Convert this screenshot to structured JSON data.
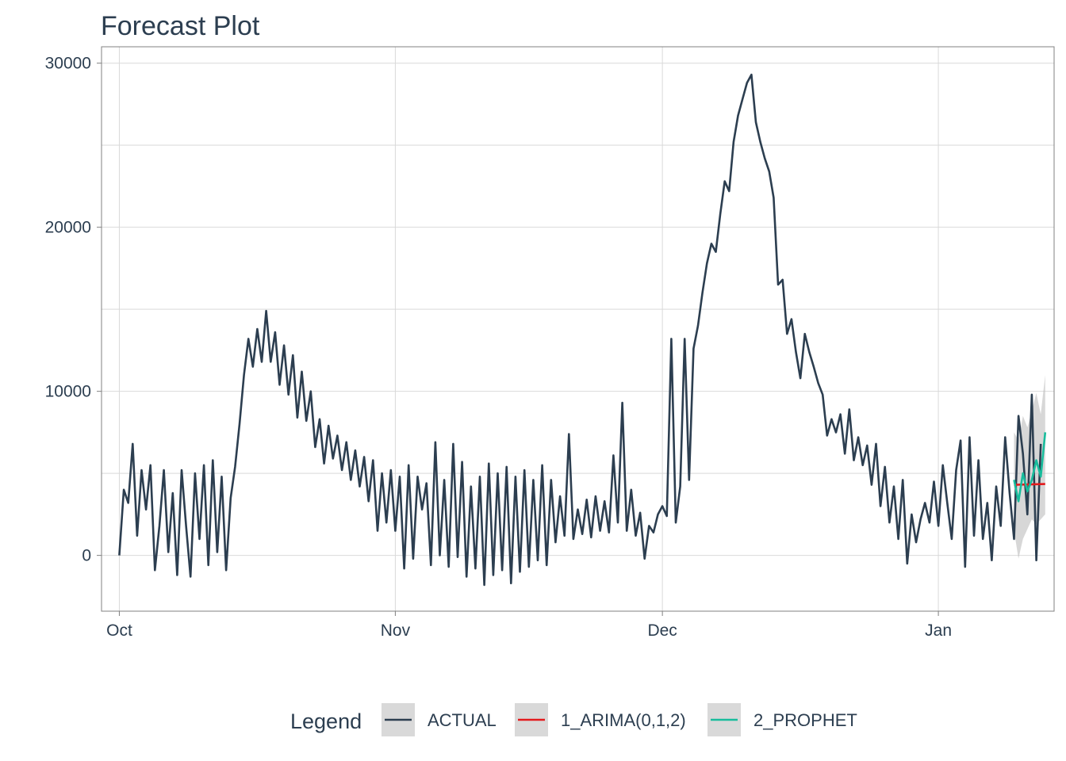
{
  "chart_data": {
    "type": "line",
    "title": "Forecast Plot",
    "xlabel": "",
    "ylabel": "",
    "x_axis": {
      "type": "date",
      "range": [
        "2020-09-29",
        "2021-01-14"
      ],
      "ticks": [
        {
          "date": "2020-10-01",
          "label": "Oct"
        },
        {
          "date": "2020-11-01",
          "label": "Nov"
        },
        {
          "date": "2020-12-01",
          "label": "Dec"
        },
        {
          "date": "2021-01-01",
          "label": "Jan"
        }
      ]
    },
    "y_axis": {
      "range": [
        -3400,
        31000
      ],
      "ticks": [
        0,
        10000,
        20000,
        30000
      ]
    },
    "grid": true,
    "legend": {
      "title": "Legend",
      "position": "bottom",
      "entries": [
        {
          "label": "ACTUAL",
          "color": "#2c3e50"
        },
        {
          "label": "1_ARIMA(0,1,2)",
          "color": "#e31a1c"
        },
        {
          "label": "2_PROPHET",
          "color": "#18bc9c"
        }
      ]
    },
    "series": [
      {
        "name": "ACTUAL",
        "color": "#2c3e50",
        "points": [
          [
            "2020-10-01",
            0
          ],
          [
            "2020-10-01T12:00",
            4000
          ],
          [
            "2020-10-02",
            3200
          ],
          [
            "2020-10-02T12:00",
            6800
          ],
          [
            "2020-10-03",
            1200
          ],
          [
            "2020-10-03T12:00",
            5200
          ],
          [
            "2020-10-04",
            2800
          ],
          [
            "2020-10-04T12:00",
            5500
          ],
          [
            "2020-10-05",
            -900
          ],
          [
            "2020-10-05T12:00",
            1800
          ],
          [
            "2020-10-06",
            5200
          ],
          [
            "2020-10-06T12:00",
            200
          ],
          [
            "2020-10-07",
            3800
          ],
          [
            "2020-10-07T12:00",
            -1200
          ],
          [
            "2020-10-08",
            5200
          ],
          [
            "2020-10-08T12:00",
            1800
          ],
          [
            "2020-10-09",
            -1300
          ],
          [
            "2020-10-09T12:00",
            5000
          ],
          [
            "2020-10-10",
            1000
          ],
          [
            "2020-10-10T12:00",
            5500
          ],
          [
            "2020-10-11",
            -600
          ],
          [
            "2020-10-11T12:00",
            5800
          ],
          [
            "2020-10-12",
            200
          ],
          [
            "2020-10-12T12:00",
            4800
          ],
          [
            "2020-10-13",
            -900
          ],
          [
            "2020-10-13T12:00",
            3500
          ],
          [
            "2020-10-14",
            5400
          ],
          [
            "2020-10-14T12:00",
            8000
          ],
          [
            "2020-10-15",
            11000
          ],
          [
            "2020-10-15T12:00",
            13200
          ],
          [
            "2020-10-16",
            11500
          ],
          [
            "2020-10-16T12:00",
            13800
          ],
          [
            "2020-10-17",
            11800
          ],
          [
            "2020-10-17T12:00",
            14900
          ],
          [
            "2020-10-18",
            11800
          ],
          [
            "2020-10-18T12:00",
            13600
          ],
          [
            "2020-10-19",
            10400
          ],
          [
            "2020-10-19T12:00",
            12800
          ],
          [
            "2020-10-20",
            9800
          ],
          [
            "2020-10-20T12:00",
            12200
          ],
          [
            "2020-10-21",
            8400
          ],
          [
            "2020-10-21T12:00",
            11200
          ],
          [
            "2020-10-22",
            8200
          ],
          [
            "2020-10-22T12:00",
            10000
          ],
          [
            "2020-10-23",
            6600
          ],
          [
            "2020-10-23T12:00",
            8300
          ],
          [
            "2020-10-24",
            5600
          ],
          [
            "2020-10-24T12:00",
            7900
          ],
          [
            "2020-10-25",
            5900
          ],
          [
            "2020-10-25T12:00",
            7300
          ],
          [
            "2020-10-26",
            5200
          ],
          [
            "2020-10-26T12:00",
            6900
          ],
          [
            "2020-10-27",
            4600
          ],
          [
            "2020-10-27T12:00",
            6400
          ],
          [
            "2020-10-28",
            4200
          ],
          [
            "2020-10-28T12:00",
            6000
          ],
          [
            "2020-10-29",
            3300
          ],
          [
            "2020-10-29T12:00",
            5800
          ],
          [
            "2020-10-30",
            1500
          ],
          [
            "2020-10-30T12:00",
            5000
          ],
          [
            "2020-10-31",
            2000
          ],
          [
            "2020-10-31T12:00",
            5200
          ],
          [
            "2020-11-01",
            1500
          ],
          [
            "2020-11-01T12:00",
            4800
          ],
          [
            "2020-11-02",
            -800
          ],
          [
            "2020-11-02T12:00",
            5500
          ],
          [
            "2020-11-03",
            -200
          ],
          [
            "2020-11-03T12:00",
            4800
          ],
          [
            "2020-11-04",
            2800
          ],
          [
            "2020-11-04T12:00",
            4400
          ],
          [
            "2020-11-05",
            -600
          ],
          [
            "2020-11-05T12:00",
            6900
          ],
          [
            "2020-11-06",
            0
          ],
          [
            "2020-11-06T12:00",
            4600
          ],
          [
            "2020-11-07",
            -700
          ],
          [
            "2020-11-07T12:00",
            6800
          ],
          [
            "2020-11-08",
            -100
          ],
          [
            "2020-11-08T12:00",
            5700
          ],
          [
            "2020-11-09",
            -1300
          ],
          [
            "2020-11-09T12:00",
            4200
          ],
          [
            "2020-11-10",
            -800
          ],
          [
            "2020-11-10T12:00",
            4800
          ],
          [
            "2020-11-11",
            -1800
          ],
          [
            "2020-11-11T12:00",
            5600
          ],
          [
            "2020-11-12",
            -1200
          ],
          [
            "2020-11-12T12:00",
            5000
          ],
          [
            "2020-11-13",
            -900
          ],
          [
            "2020-11-13T12:00",
            5400
          ],
          [
            "2020-11-14",
            -1700
          ],
          [
            "2020-11-14T12:00",
            4800
          ],
          [
            "2020-11-15",
            -1000
          ],
          [
            "2020-11-15T12:00",
            5200
          ],
          [
            "2020-11-16",
            -700
          ],
          [
            "2020-11-16T12:00",
            4600
          ],
          [
            "2020-11-17",
            -300
          ],
          [
            "2020-11-17T12:00",
            5500
          ],
          [
            "2020-11-18",
            -600
          ],
          [
            "2020-11-18T12:00",
            4600
          ],
          [
            "2020-11-19",
            800
          ],
          [
            "2020-11-19T12:00",
            3600
          ],
          [
            "2020-11-20",
            1200
          ],
          [
            "2020-11-20T12:00",
            7400
          ],
          [
            "2020-11-21",
            1000
          ],
          [
            "2020-11-21T12:00",
            2800
          ],
          [
            "2020-11-22",
            1300
          ],
          [
            "2020-11-22T12:00",
            3400
          ],
          [
            "2020-11-23",
            1100
          ],
          [
            "2020-11-23T12:00",
            3600
          ],
          [
            "2020-11-24",
            1500
          ],
          [
            "2020-11-24T12:00",
            3300
          ],
          [
            "2020-11-25",
            1400
          ],
          [
            "2020-11-25T12:00",
            6100
          ],
          [
            "2020-11-26",
            2000
          ],
          [
            "2020-11-26T12:00",
            9300
          ],
          [
            "2020-11-27",
            1500
          ],
          [
            "2020-11-27T12:00",
            4000
          ],
          [
            "2020-11-28",
            1200
          ],
          [
            "2020-11-28T12:00",
            2600
          ],
          [
            "2020-11-29",
            -200
          ],
          [
            "2020-11-29T12:00",
            1800
          ],
          [
            "2020-11-30",
            1400
          ],
          [
            "2020-11-30T12:00",
            2500
          ]
        ],
        "points_part2": [
          [
            "2020-12-01",
            3000
          ],
          [
            "2020-12-01T12:00",
            2400
          ],
          [
            "2020-12-02",
            13200
          ],
          [
            "2020-12-02T12:00",
            2000
          ],
          [
            "2020-12-03",
            4200
          ],
          [
            "2020-12-03T12:00",
            13200
          ],
          [
            "2020-12-04",
            4600
          ],
          [
            "2020-12-04T12:00",
            12600
          ],
          [
            "2020-12-05",
            14000
          ],
          [
            "2020-12-05T12:00",
            16000
          ],
          [
            "2020-12-06",
            17800
          ],
          [
            "2020-12-06T12:00",
            19000
          ],
          [
            "2020-12-07",
            18500
          ],
          [
            "2020-12-07T12:00",
            20800
          ],
          [
            "2020-12-08",
            22800
          ],
          [
            "2020-12-08T12:00",
            22200
          ],
          [
            "2020-12-09",
            25200
          ],
          [
            "2020-12-09T12:00",
            26800
          ],
          [
            "2020-12-10",
            27800
          ],
          [
            "2020-12-10T12:00",
            28800
          ],
          [
            "2020-12-11",
            29300
          ],
          [
            "2020-12-11T12:00",
            26400
          ],
          [
            "2020-12-12",
            25200
          ],
          [
            "2020-12-12T12:00",
            24200
          ],
          [
            "2020-12-13",
            23400
          ],
          [
            "2020-12-13T12:00",
            21800
          ],
          [
            "2020-12-14",
            16500
          ],
          [
            "2020-12-14T12:00",
            16800
          ],
          [
            "2020-12-15",
            13500
          ],
          [
            "2020-12-15T12:00",
            14400
          ],
          [
            "2020-12-16",
            12400
          ],
          [
            "2020-12-16T12:00",
            10800
          ],
          [
            "2020-12-17",
            13500
          ],
          [
            "2020-12-17T12:00",
            12400
          ],
          [
            "2020-12-18",
            11500
          ],
          [
            "2020-12-18T12:00",
            10500
          ],
          [
            "2020-12-19",
            9800
          ],
          [
            "2020-12-19T12:00",
            7300
          ],
          [
            "2020-12-20",
            8300
          ],
          [
            "2020-12-20T12:00",
            7500
          ],
          [
            "2020-12-21",
            8600
          ],
          [
            "2020-12-21T12:00",
            6200
          ],
          [
            "2020-12-22",
            8900
          ],
          [
            "2020-12-22T12:00",
            5800
          ],
          [
            "2020-12-23",
            7200
          ],
          [
            "2020-12-23T12:00",
            5500
          ],
          [
            "2020-12-24",
            6700
          ],
          [
            "2020-12-24T12:00",
            4300
          ],
          [
            "2020-12-25",
            6800
          ],
          [
            "2020-12-25T12:00",
            3000
          ],
          [
            "2020-12-26",
            5400
          ],
          [
            "2020-12-26T12:00",
            2000
          ],
          [
            "2020-12-27",
            4200
          ],
          [
            "2020-12-27T12:00",
            1000
          ],
          [
            "2020-12-28",
            4600
          ],
          [
            "2020-12-28T12:00",
            -500
          ],
          [
            "2020-12-29",
            2500
          ],
          [
            "2020-12-29T12:00",
            800
          ],
          [
            "2020-12-30",
            2200
          ],
          [
            "2020-12-30T12:00",
            3200
          ],
          [
            "2020-12-31",
            2000
          ],
          [
            "2020-12-31T12:00",
            4500
          ]
        ],
        "points_part3": [
          [
            "2021-01-01",
            1800
          ],
          [
            "2021-01-01T12:00",
            5500
          ],
          [
            "2021-01-02",
            3200
          ],
          [
            "2021-01-02T12:00",
            1000
          ],
          [
            "2021-01-03",
            5200
          ],
          [
            "2021-01-03T12:00",
            7000
          ],
          [
            "2021-01-04",
            -700
          ],
          [
            "2021-01-04T12:00",
            7200
          ],
          [
            "2021-01-05",
            1200
          ],
          [
            "2021-01-05T12:00",
            5800
          ],
          [
            "2021-01-06",
            1000
          ],
          [
            "2021-01-06T12:00",
            3200
          ],
          [
            "2021-01-07",
            -300
          ],
          [
            "2021-01-07T12:00",
            4200
          ],
          [
            "2021-01-08",
            1800
          ],
          [
            "2021-01-08T12:00",
            7200
          ],
          [
            "2021-01-09",
            3800
          ],
          [
            "2021-01-09T12:00",
            1000
          ],
          [
            "2021-01-10",
            8500
          ],
          [
            "2021-01-10T12:00",
            6200
          ],
          [
            "2021-01-11",
            2500
          ],
          [
            "2021-01-11T12:00",
            9800
          ],
          [
            "2021-01-12",
            -300
          ],
          [
            "2021-01-12T12:00",
            6800
          ]
        ]
      },
      {
        "name": "1_ARIMA(0,1,2)",
        "color": "#e31a1c",
        "points": [
          [
            "2021-01-09T12:00",
            4300
          ],
          [
            "2021-01-13",
            4350
          ]
        ]
      },
      {
        "name": "2_PROPHET",
        "color": "#18bc9c",
        "points": [
          [
            "2021-01-09T12:00",
            4600
          ],
          [
            "2021-01-10",
            3300
          ],
          [
            "2021-01-10T12:00",
            5000
          ],
          [
            "2021-01-11",
            3900
          ],
          [
            "2021-01-11T12:00",
            4600
          ],
          [
            "2021-01-12",
            5800
          ],
          [
            "2021-01-12T12:00",
            4800
          ],
          [
            "2021-01-13",
            7500
          ]
        ],
        "band": [
          [
            "2021-01-09T12:00",
            1500,
            7500
          ],
          [
            "2021-01-10",
            -200,
            7000
          ],
          [
            "2021-01-10T12:00",
            1000,
            8500
          ],
          [
            "2021-01-11",
            1600,
            7800
          ],
          [
            "2021-01-11T12:00",
            2200,
            8800
          ],
          [
            "2021-01-12",
            1900,
            9900
          ],
          [
            "2021-01-12T12:00",
            2200,
            8600
          ],
          [
            "2021-01-13",
            2500,
            11000
          ]
        ]
      }
    ]
  }
}
